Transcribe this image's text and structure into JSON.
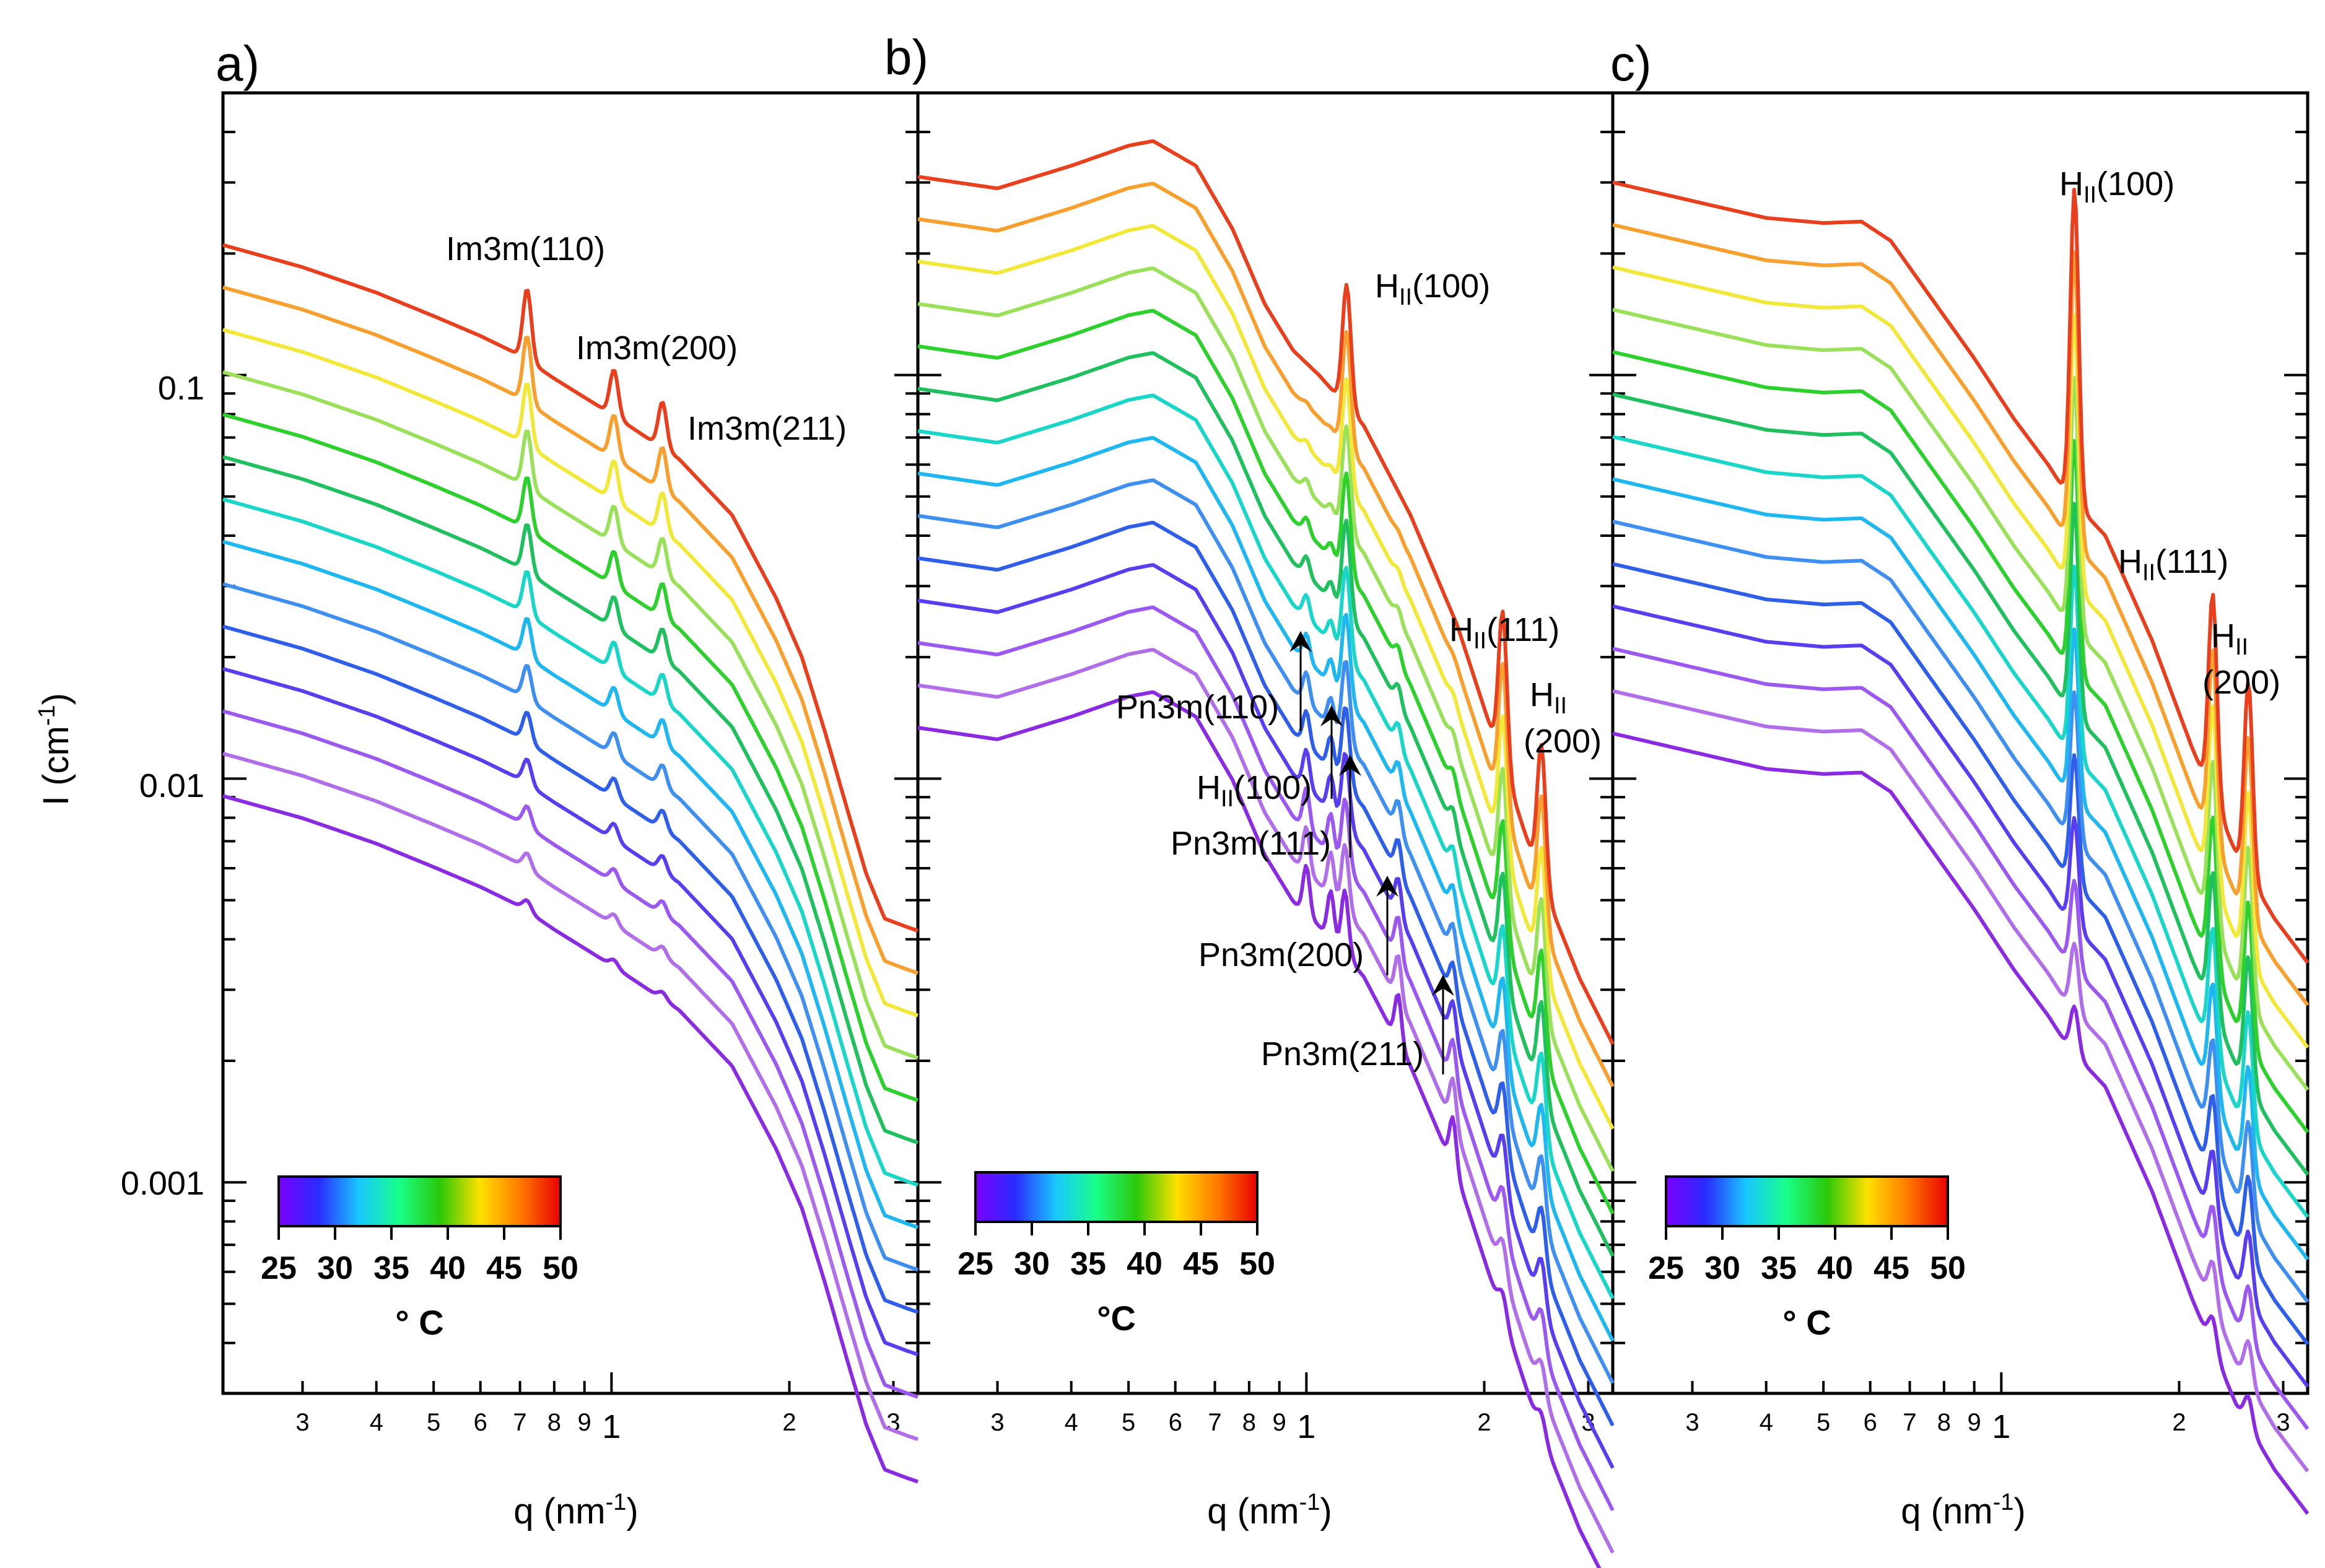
{
  "chart_data": [
    {
      "type": "line",
      "panel_label": "a)",
      "xlabel": "q (nm",
      "xlabel_sup": "-1",
      "xlabel_close": ")",
      "ylabel": "I (cm",
      "ylabel_sup": "-1",
      "ylabel_close": ")",
      "x_scale": "log",
      "y_scale": "log",
      "xlim": [
        0.22,
        3.3
      ],
      "ylim": [
        0.0003,
        0.5
      ],
      "x_tick_labels": [
        "3",
        "4",
        "5",
        "6",
        "7",
        "8",
        "9",
        "1",
        "2",
        "3"
      ],
      "y_tick_labels": [
        "0.1",
        "0.01",
        "0.001"
      ],
      "series_count": 14,
      "series_temperature_range_C": [
        25,
        50
      ],
      "baseline_top_curve": [
        [
          0.22,
          0.21
        ],
        [
          0.3,
          0.185
        ],
        [
          0.4,
          0.16
        ],
        [
          0.5,
          0.14
        ],
        [
          0.6,
          0.125
        ],
        [
          0.7,
          0.112
        ],
        [
          0.8,
          0.098
        ],
        [
          1.0,
          0.08
        ],
        [
          1.3,
          0.062
        ],
        [
          1.6,
          0.045
        ],
        [
          1.9,
          0.028
        ],
        [
          2.1,
          0.02
        ],
        [
          2.3,
          0.013
        ],
        [
          2.5,
          0.0085
        ],
        [
          2.7,
          0.0058
        ],
        [
          2.9,
          0.0045
        ],
        [
          3.15,
          0.0043
        ],
        [
          3.3,
          0.0042
        ]
      ],
      "peaks": [
        {
          "label": "Im3m(110)",
          "q": 0.72,
          "height": 1.5
        },
        {
          "label": "Im3m(200)",
          "q": 1.01,
          "height": 1.3
        },
        {
          "label": "Im3m(211)",
          "q": 1.22,
          "height": 1.3
        }
      ],
      "colorbar": {
        "ticks": [
          "25",
          "30",
          "35",
          "40",
          "45",
          "50"
        ],
        "unit": "° C"
      }
    },
    {
      "type": "line",
      "panel_label": "b)",
      "xlabel": "q (nm",
      "xlabel_sup": "-1",
      "xlabel_close": ")",
      "x_scale": "log",
      "y_scale": "log",
      "xlim": [
        0.22,
        3.3
      ],
      "ylim": [
        0.0003,
        0.5
      ],
      "x_tick_labels": [
        "3",
        "4",
        "5",
        "6",
        "7",
        "8",
        "9",
        "1",
        "2",
        "3"
      ],
      "series_count": 14,
      "series_temperature_range_C": [
        25,
        50
      ],
      "baseline_top_curve": [
        [
          0.22,
          0.31
        ],
        [
          0.3,
          0.29
        ],
        [
          0.4,
          0.33
        ],
        [
          0.5,
          0.37
        ],
        [
          0.55,
          0.38
        ],
        [
          0.65,
          0.33
        ],
        [
          0.75,
          0.23
        ],
        [
          0.85,
          0.15
        ],
        [
          0.95,
          0.115
        ],
        [
          1.05,
          0.1
        ],
        [
          1.25,
          0.075
        ],
        [
          1.5,
          0.045
        ],
        [
          1.8,
          0.024
        ],
        [
          2.1,
          0.012
        ],
        [
          2.5,
          0.0055
        ],
        [
          2.9,
          0.0032
        ],
        [
          3.3,
          0.0022
        ]
      ],
      "peaks": [
        {
          "label": "H",
          "label_sub": "II",
          "label_rest": "(100)",
          "q": 1.17,
          "height": 2.0
        },
        {
          "label": "H",
          "label_sub": "II",
          "label_rest": "(111)",
          "q": 2.15,
          "height": 2.4
        },
        {
          "label": "H",
          "label_sub": "II",
          "label_rest": "(200)",
          "q": 2.5,
          "height": 2.2
        }
      ],
      "low_temperature_peaks": [
        {
          "label": "Pn3m(110)",
          "q": 1.0
        },
        {
          "label": "H",
          "label_sub": "II",
          "label_rest": "(100)",
          "q": 1.1
        },
        {
          "label": "Pn3m(111)",
          "q": 1.16
        },
        {
          "label": "Pn3m(200)",
          "q": 1.43
        },
        {
          "label": "Pn3m(211)",
          "q": 1.77
        }
      ],
      "colorbar": {
        "ticks": [
          "25",
          "30",
          "35",
          "40",
          "45",
          "50"
        ],
        "unit": "°C"
      }
    },
    {
      "type": "line",
      "panel_label": "c)",
      "xlabel": "q (nm",
      "xlabel_sup": "-1",
      "xlabel_close": ")",
      "x_scale": "log",
      "y_scale": "log",
      "xlim": [
        0.22,
        3.3
      ],
      "ylim": [
        0.0003,
        0.5
      ],
      "x_tick_labels": [
        "3",
        "4",
        "5",
        "6",
        "7",
        "8",
        "9",
        "1",
        "2",
        "3"
      ],
      "series_count": 14,
      "series_temperature_range_C": [
        25,
        50
      ],
      "baseline_top_curve": [
        [
          0.22,
          0.3
        ],
        [
          0.3,
          0.27
        ],
        [
          0.4,
          0.245
        ],
        [
          0.5,
          0.238
        ],
        [
          0.58,
          0.24
        ],
        [
          0.65,
          0.215
        ],
        [
          0.75,
          0.16
        ],
        [
          0.9,
          0.11
        ],
        [
          1.05,
          0.078
        ],
        [
          1.2,
          0.06
        ],
        [
          1.3,
          0.05
        ],
        [
          1.5,
          0.04
        ],
        [
          1.8,
          0.022
        ],
        [
          2.1,
          0.012
        ],
        [
          2.5,
          0.0065
        ],
        [
          2.9,
          0.0045
        ],
        [
          3.3,
          0.0035
        ]
      ],
      "peaks": [
        {
          "label": "H",
          "label_sub": "II",
          "label_rest": "(100)",
          "q": 1.33,
          "height": 6.0
        },
        {
          "label": "H",
          "label_sub": "II",
          "label_rest": "(111)",
          "q": 2.28,
          "height": 3.2
        },
        {
          "label": "H",
          "label_sub": "II",
          "label_rest": "(200)",
          "q": 2.62,
          "height": 3.0
        }
      ],
      "colorbar": {
        "ticks": [
          "25",
          "30",
          "35",
          "40",
          "45",
          "50"
        ],
        "unit": "° C"
      }
    }
  ],
  "palette": [
    "#8a2be2",
    "#b06ee8",
    "#9b59f0",
    "#5b3df0",
    "#2f5fe8",
    "#3f8ff0",
    "#1fb7f0",
    "#19d6c8",
    "#20c060",
    "#2ed02e",
    "#9be05a",
    "#f2e83a",
    "#f7a02f",
    "#e8401e"
  ]
}
